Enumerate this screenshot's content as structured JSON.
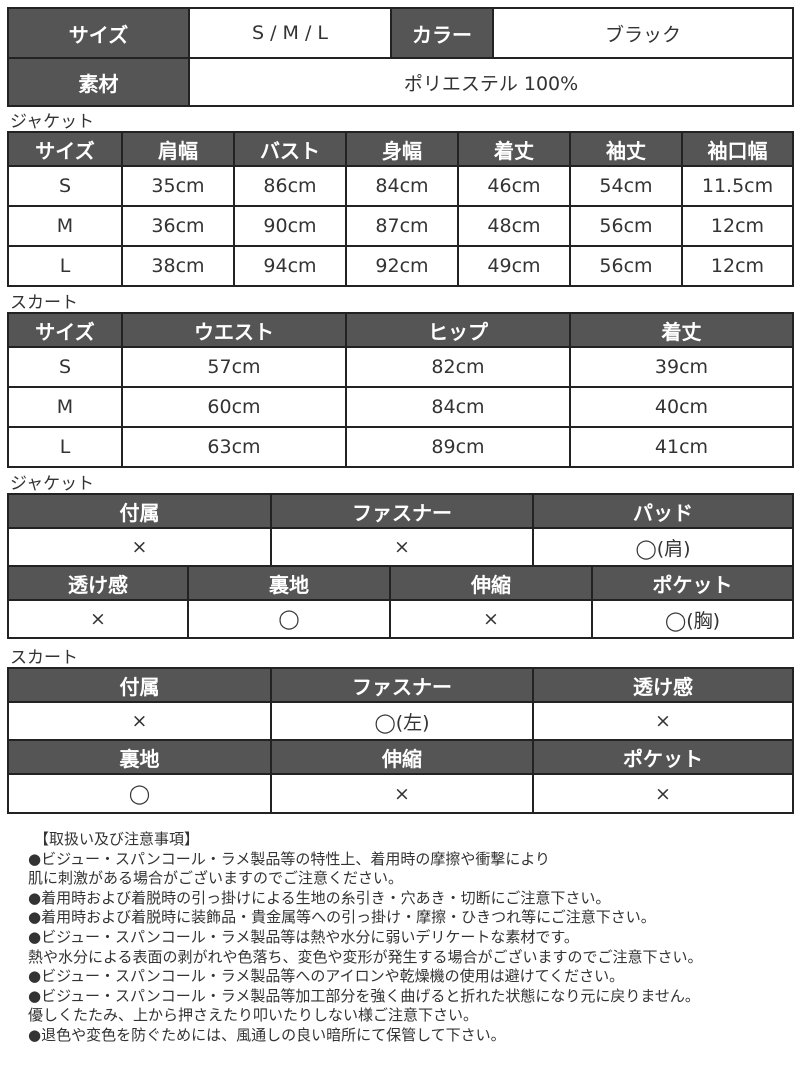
{
  "basic": {
    "size_label": "サイズ",
    "size_value": "S / M / L",
    "color_label": "カラー",
    "color_value": "ブラック",
    "material_label": "素材",
    "material_value": "ポリエステル 100%"
  },
  "jacket_size": {
    "title": "ジャケット",
    "headers": [
      "サイズ",
      "肩幅",
      "バスト",
      "身幅",
      "着丈",
      "袖丈",
      "袖口幅"
    ],
    "rows": [
      [
        "S",
        "35cm",
        "86cm",
        "84cm",
        "46cm",
        "54cm",
        "11.5cm"
      ],
      [
        "M",
        "36cm",
        "90cm",
        "87cm",
        "48cm",
        "56cm",
        "12cm"
      ],
      [
        "L",
        "38cm",
        "94cm",
        "92cm",
        "49cm",
        "56cm",
        "12cm"
      ]
    ]
  },
  "skirt_size": {
    "title": "スカート",
    "headers": [
      "サイズ",
      "ウエスト",
      "ヒップ",
      "着丈"
    ],
    "rows": [
      [
        "S",
        "57cm",
        "82cm",
        "39cm"
      ],
      [
        "M",
        "60cm",
        "84cm",
        "40cm"
      ],
      [
        "L",
        "63cm",
        "89cm",
        "41cm"
      ]
    ]
  },
  "jacket_features": {
    "title": "ジャケット",
    "row1_headers": [
      "付属",
      "ファスナー",
      "パッド"
    ],
    "row1_values": [
      "×",
      "×",
      "◯(肩)"
    ],
    "row2_headers": [
      "透け感",
      "裏地",
      "伸縮",
      "ポケット"
    ],
    "row2_values": [
      "×",
      "◯",
      "×",
      "◯(胸)"
    ]
  },
  "skirt_features": {
    "title": "スカート",
    "row1_headers": [
      "付属",
      "ファスナー",
      "透け感"
    ],
    "row1_values": [
      "×",
      "◯(左)",
      "×"
    ],
    "row2_headers": [
      "裏地",
      "伸縮",
      "ポケット"
    ],
    "row2_values": [
      "◯",
      "×",
      "×"
    ]
  },
  "notes": [
    "【取扱い及び注意事項】",
    "●ビジュー・スパンコール・ラメ製品等の特性上、着用時の摩擦や衝撃により",
    "肌に刺激がある場合がございますのでご注意ください。",
    "●着用時および着脱時の引っ掛けによる生地の糸引き・穴あき・切断にご注意下さい。",
    "●着用時および着脱時に装飾品・貴金属等への引っ掛け・摩擦・ひきつれ等にご注意下さい。",
    "●ビジュー・スパンコール・ラメ製品等は熱や水分に弱いデリケートな素材です。",
    "熱や水分による表面の剥がれや色落ち、変色や変形が発生する場合がございますのでご注意下さい。",
    "●ビジュー・スパンコール・ラメ製品等へのアイロンや乾燥機の使用は避けてください。",
    "●ビジュー・スパンコール・ラメ製品等加工部分を強く曲げると折れた状態になり元に戻りません。",
    "優しくたたみ、上から押さえたり叩いたりしない様ご注意下さい。",
    "●退色や変色を防ぐためには、風通しの良い暗所にて保管して下さい。"
  ]
}
